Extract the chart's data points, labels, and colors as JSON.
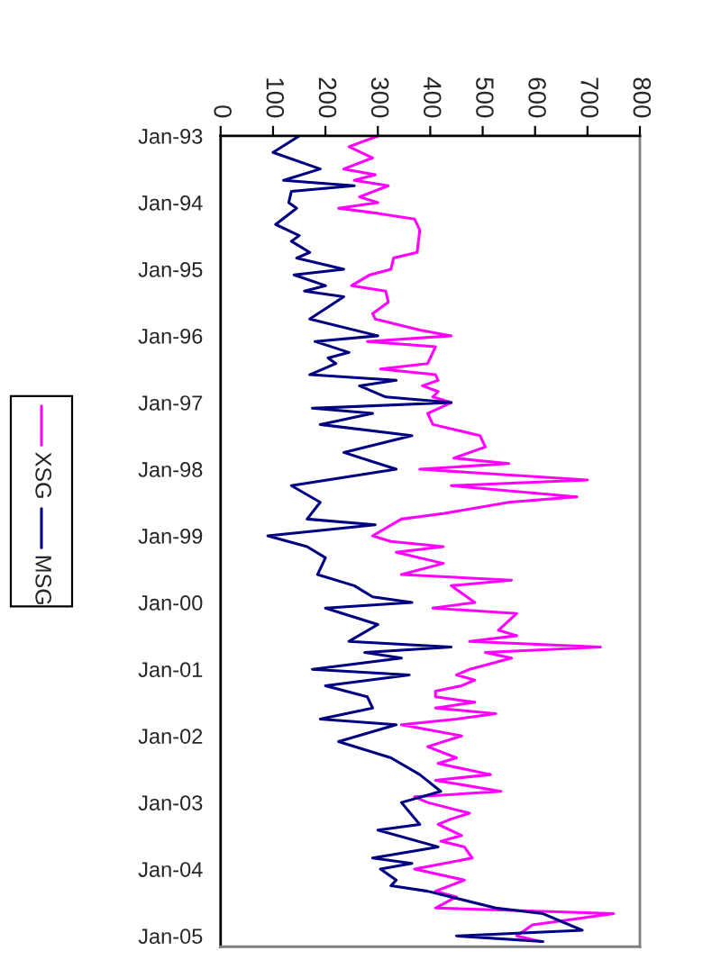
{
  "chart_data": {
    "type": "line",
    "orientation": "horizontal",
    "legend": "left",
    "grid": false,
    "xlim": [
      0,
      800
    ],
    "xticks": [
      0,
      100,
      200,
      300,
      400,
      500,
      600,
      700,
      800
    ],
    "ylim": [
      "2005-03",
      "1993-01"
    ],
    "yticks": [
      {
        "value": "1993-01",
        "label": "Jan-93"
      },
      {
        "value": "1994-01",
        "label": "Jan-94"
      },
      {
        "value": "1995-01",
        "label": "Jan-95"
      },
      {
        "value": "1996-01",
        "label": "Jan-96"
      },
      {
        "value": "1997-01",
        "label": "Jan-97"
      },
      {
        "value": "1998-01",
        "label": "Jan-98"
      },
      {
        "value": "1999-01",
        "label": "Jan-99"
      },
      {
        "value": "2000-01",
        "label": "Jan-00"
      },
      {
        "value": "2001-01",
        "label": "Jan-01"
      },
      {
        "value": "2002-01",
        "label": "Jan-02"
      },
      {
        "value": "2003-01",
        "label": "Jan-03"
      },
      {
        "value": "2004-01",
        "label": "Jan-04"
      },
      {
        "value": "2005-01",
        "label": "Jan-05"
      }
    ],
    "series": [
      {
        "name": "XSG",
        "color": "#ff00ff",
        "x": [
          "1993-01",
          "1993-03",
          "1993-05",
          "1993-07",
          "1993-08",
          "1993-09",
          "1993-10",
          "1993-12",
          "1994-01",
          "1994-02",
          "1994-03",
          "1994-04",
          "1994-06",
          "1994-10",
          "1994-11",
          "1995-01",
          "1995-02",
          "1995-04",
          "1995-05",
          "1995-07",
          "1995-09",
          "1995-10",
          "1995-12",
          "1996-01",
          "1996-02",
          "1996-03",
          "1996-06",
          "1996-07",
          "1996-08",
          "1996-09",
          "1996-10",
          "1996-11",
          "1996-12",
          "1997-01",
          "1997-03",
          "1997-05",
          "1997-07",
          "1997-09",
          "1997-11",
          "1997-12",
          "1998-01",
          "1998-03",
          "1998-04",
          "1998-06",
          "1998-07",
          "1998-09",
          "1998-10",
          "1999-01",
          "1999-02",
          "1999-03",
          "1999-04",
          "1999-06",
          "1999-08",
          "1999-09",
          "1999-10",
          "2000-01",
          "2000-02",
          "2000-03",
          "2000-06",
          "2000-07",
          "2000-08",
          "2000-09",
          "2000-10",
          "2000-11",
          "2001-01",
          "2001-02",
          "2001-03",
          "2001-04",
          "2001-05",
          "2001-06",
          "2001-07",
          "2001-08",
          "2001-09",
          "2001-10",
          "2001-11",
          "2002-01",
          "2002-03",
          "2002-05",
          "2002-06",
          "2002-08",
          "2002-09",
          "2002-11",
          "2002-12",
          "2003-01",
          "2003-03",
          "2003-04",
          "2003-05",
          "2003-07",
          "2003-08",
          "2003-09",
          "2003-11",
          "2004-01",
          "2004-03",
          "2004-05",
          "2004-06",
          "2004-08",
          "2004-09",
          "2004-11",
          "2005-01",
          "2005-02"
        ],
        "values": [
          300,
          245,
          290,
          235,
          295,
          255,
          320,
          265,
          300,
          225,
          300,
          370,
          380,
          375,
          330,
          325,
          285,
          250,
          315,
          320,
          290,
          295,
          380,
          440,
          280,
          410,
          395,
          305,
          410,
          415,
          385,
          415,
          405,
          440,
          395,
          405,
          495,
          505,
          445,
          550,
          380,
          700,
          440,
          680,
          550,
          425,
          345,
          290,
          325,
          425,
          335,
          425,
          345,
          555,
          440,
          485,
          405,
          565,
          530,
          565,
          475,
          725,
          505,
          555,
          475,
          450,
          485,
          460,
          410,
          410,
          485,
          410,
          525,
          450,
          345,
          460,
          395,
          450,
          415,
          515,
          410,
          535,
          370,
          395,
          475,
          440,
          415,
          460,
          420,
          465,
          480,
          370,
          465,
          410,
          450,
          410,
          750,
          595,
          565,
          610
        ]
      },
      {
        "name": "MSG",
        "color": "#000080",
        "x": [
          "1993-01",
          "1993-04",
          "1993-07",
          "1993-09",
          "1993-10",
          "1993-11",
          "1994-01",
          "1994-02",
          "1994-05",
          "1994-07",
          "1994-08",
          "1994-10",
          "1994-11",
          "1995-01",
          "1995-02",
          "1995-04",
          "1995-05",
          "1995-06",
          "1995-10",
          "1996-01",
          "1996-02",
          "1996-04",
          "1996-05",
          "1996-06",
          "1996-08",
          "1996-09",
          "1996-10",
          "1996-12",
          "1997-01",
          "1997-02",
          "1997-03",
          "1997-05",
          "1997-07",
          "1997-10",
          "1998-01",
          "1998-04",
          "1998-07",
          "1998-10",
          "1998-11",
          "1999-01",
          "1999-03",
          "1999-05",
          "1999-08",
          "1999-10",
          "1999-12",
          "2000-01",
          "2000-02",
          "2000-05",
          "2000-08",
          "2000-09",
          "2000-10",
          "2000-11",
          "2001-01",
          "2001-02",
          "2001-04",
          "2001-06",
          "2001-08",
          "2001-10",
          "2001-11",
          "2002-02",
          "2002-05",
          "2002-08",
          "2002-11",
          "2003-01",
          "2003-05",
          "2003-06",
          "2003-09",
          "2003-11",
          "2003-12",
          "2004-01",
          "2004-03",
          "2004-04",
          "2004-05",
          "2004-08",
          "2004-09",
          "2004-12",
          "2005-01",
          "2005-02"
        ],
        "values": [
          150,
          100,
          190,
          120,
          255,
          135,
          130,
          145,
          105,
          150,
          135,
          170,
          145,
          235,
          140,
          200,
          160,
          235,
          170,
          300,
          180,
          245,
          205,
          220,
          170,
          335,
          265,
          315,
          440,
          175,
          290,
          190,
          365,
          235,
          335,
          135,
          190,
          165,
          295,
          90,
          165,
          200,
          185,
          255,
          290,
          365,
          200,
          300,
          245,
          440,
          275,
          345,
          175,
          360,
          200,
          280,
          290,
          190,
          335,
          225,
          325,
          380,
          420,
          345,
          380,
          300,
          415,
          290,
          365,
          305,
          335,
          325,
          395,
          525,
          615,
          690,
          450,
          615
        ]
      }
    ]
  }
}
